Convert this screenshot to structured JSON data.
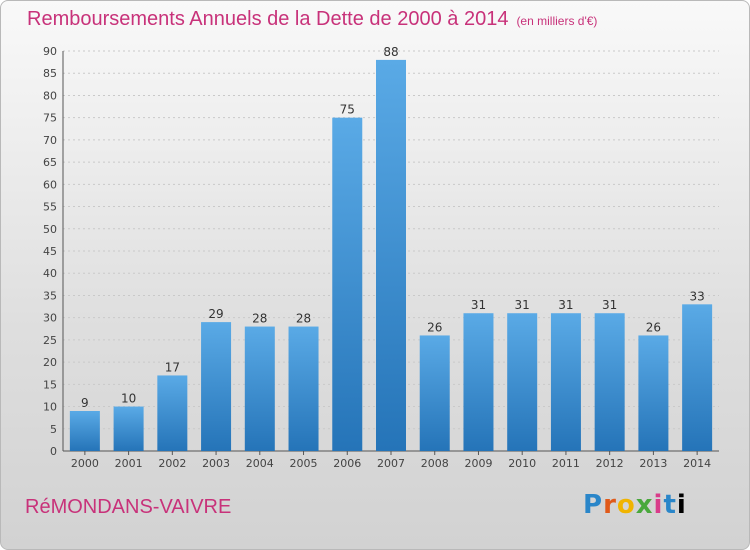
{
  "title": "Remboursements Annuels de la Dette de 2000 à 2014",
  "subtitle": "(en milliers d'€)",
  "town": "RéMONDANS-VAIVRE",
  "logo_text": "Proxiti",
  "colors": {
    "bar": "#4a9ad8",
    "bar_dark": "#2574b8",
    "title": "#c8327a"
  },
  "chart_data": {
    "type": "bar",
    "title": "Remboursements Annuels de la Dette de 2000 à 2014",
    "subtitle": "(en milliers d'€)",
    "categories": [
      "2000",
      "2001",
      "2002",
      "2003",
      "2004",
      "2005",
      "2006",
      "2007",
      "2008",
      "2009",
      "2010",
      "2011",
      "2012",
      "2013",
      "2014"
    ],
    "values": [
      9,
      10,
      17,
      29,
      28,
      28,
      75,
      88,
      26,
      31,
      31,
      31,
      31,
      26,
      33
    ],
    "ylim": [
      0,
      90
    ],
    "yticks": [
      0,
      5,
      10,
      15,
      20,
      25,
      30,
      35,
      40,
      45,
      50,
      55,
      60,
      65,
      70,
      75,
      80,
      85,
      90
    ],
    "grid": true
  }
}
